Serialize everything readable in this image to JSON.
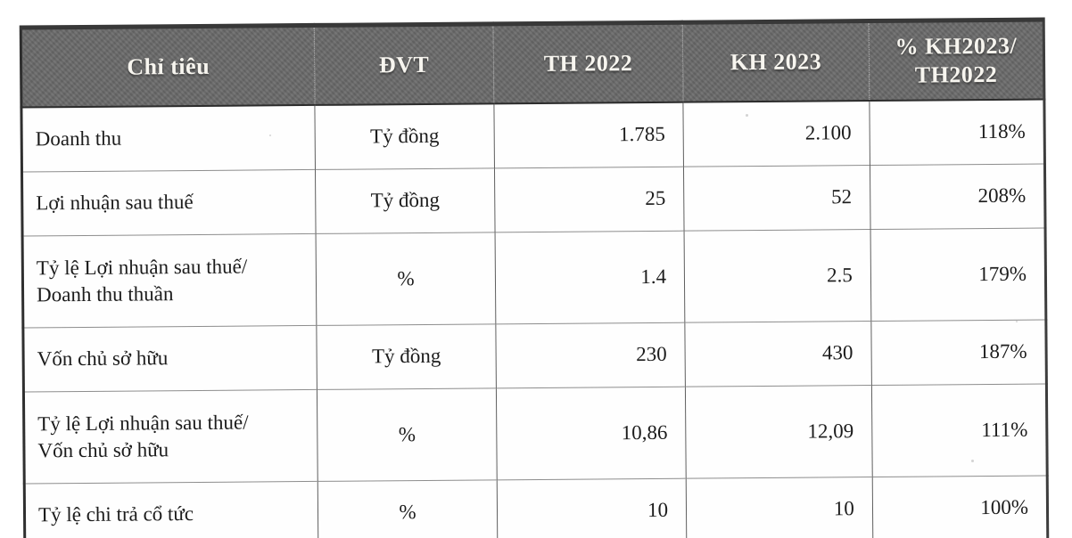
{
  "table": {
    "header_bg": "#6b6b6b",
    "header_text_color": "#f7f5ef",
    "columns": [
      {
        "key": "label",
        "header": "Chỉ tiêu"
      },
      {
        "key": "unit",
        "header": "ĐVT"
      },
      {
        "key": "th2022",
        "header": "TH 2022"
      },
      {
        "key": "kh2023",
        "header": "KH 2023"
      },
      {
        "key": "ratio",
        "header": "% KH2023/\nTH2022"
      }
    ],
    "rows": [
      {
        "label": "Doanh thu",
        "unit": "Tỷ đồng",
        "th2022": "1.785",
        "kh2023": "2.100",
        "ratio": "118%"
      },
      {
        "label": "Lợi nhuận sau thuế",
        "unit": "Tỷ đồng",
        "th2022": "25",
        "kh2023": "52",
        "ratio": "208%"
      },
      {
        "label": "Tỷ lệ Lợi nhuận sau thuế/\nDoanh thu thuần",
        "unit": "%",
        "th2022": "1.4",
        "kh2023": "2.5",
        "ratio": "179%"
      },
      {
        "label": "Vốn chủ sở hữu",
        "unit": "Tỷ đồng",
        "th2022": "230",
        "kh2023": "430",
        "ratio": "187%"
      },
      {
        "label": "Tỷ lệ Lợi nhuận sau thuế/\nVốn chủ sở hữu",
        "unit": "%",
        "th2022": "10,86",
        "kh2023": "12,09",
        "ratio": "111%"
      },
      {
        "label": "Tỷ lệ chi trả cổ tức",
        "unit": "%",
        "th2022": "10",
        "kh2023": "10",
        "ratio": "100%"
      }
    ]
  }
}
